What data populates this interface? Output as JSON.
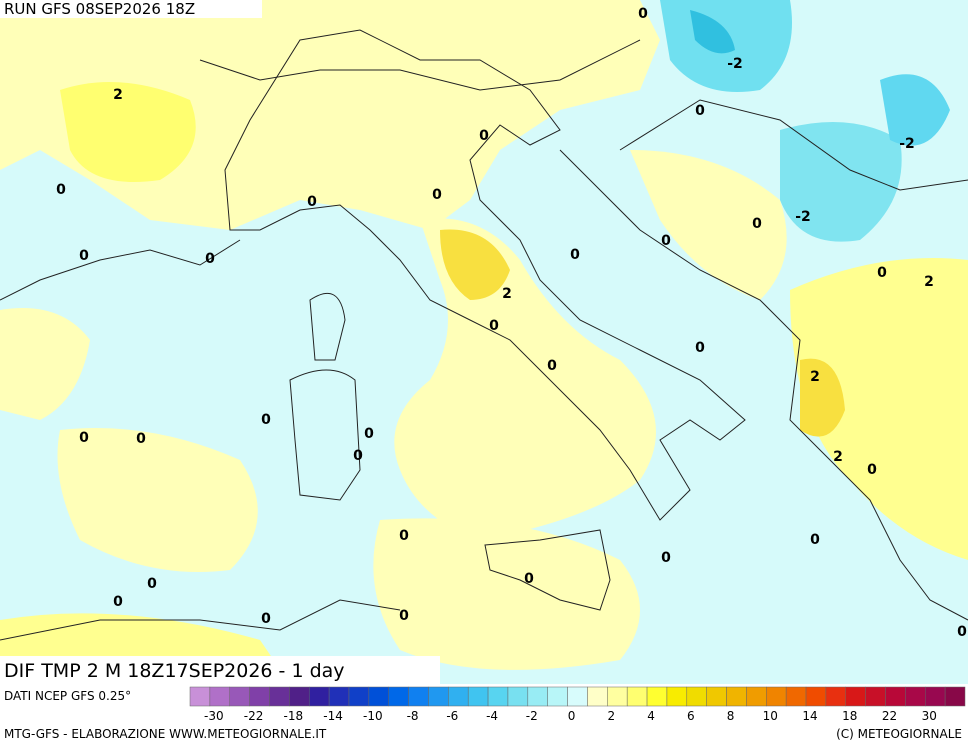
{
  "header": {
    "run": "RUN GFS 08SEP2026 18Z"
  },
  "map": {
    "contour_labels": [
      0,
      -2,
      2,
      0,
      0,
      -2,
      0,
      0,
      0,
      -2,
      0,
      0,
      0,
      0,
      0,
      0,
      2,
      2,
      0,
      0,
      0,
      2,
      0,
      0,
      0,
      0,
      0,
      2,
      0,
      0,
      0,
      0,
      0,
      0,
      0,
      0,
      0,
      0
    ]
  },
  "footer": {
    "title": "DIF TMP 2 M 18Z17SEP2026 - 1 day",
    "source": "DATI NCEP GFS 0.25°",
    "credit_left": "MTG-GFS - ELABORAZIONE WWW.METEOGIORNALE.IT",
    "credit_right": "(C) METEOGIORNALE"
  },
  "legend": {
    "labels": [
      -30,
      -22,
      -18,
      -14,
      -10,
      -8,
      -6,
      -4,
      -2,
      0,
      2,
      4,
      6,
      8,
      10,
      14,
      18,
      22,
      30
    ],
    "colors": [
      "#c890d8",
      "#b070c8",
      "#9858b8",
      "#8040a8",
      "#683098",
      "#502088",
      "#3020a0",
      "#2030b8",
      "#1040c8",
      "#0050d8",
      "#0068e8",
      "#1080f0",
      "#2098f0",
      "#30b0f0",
      "#40c4f0",
      "#58d4f0",
      "#78e0f0",
      "#98ecf4",
      "#b8f6f8",
      "#d8fcfc",
      "#ffffc8",
      "#ffffa0",
      "#ffff70",
      "#ffff30",
      "#f8ec00",
      "#f0dc00",
      "#f0c800",
      "#f0b400",
      "#f09c00",
      "#f08400",
      "#f06800",
      "#f04c00",
      "#e83010",
      "#d81818",
      "#c81028",
      "#b80838",
      "#a80848",
      "#980850",
      "#880848"
    ]
  }
}
